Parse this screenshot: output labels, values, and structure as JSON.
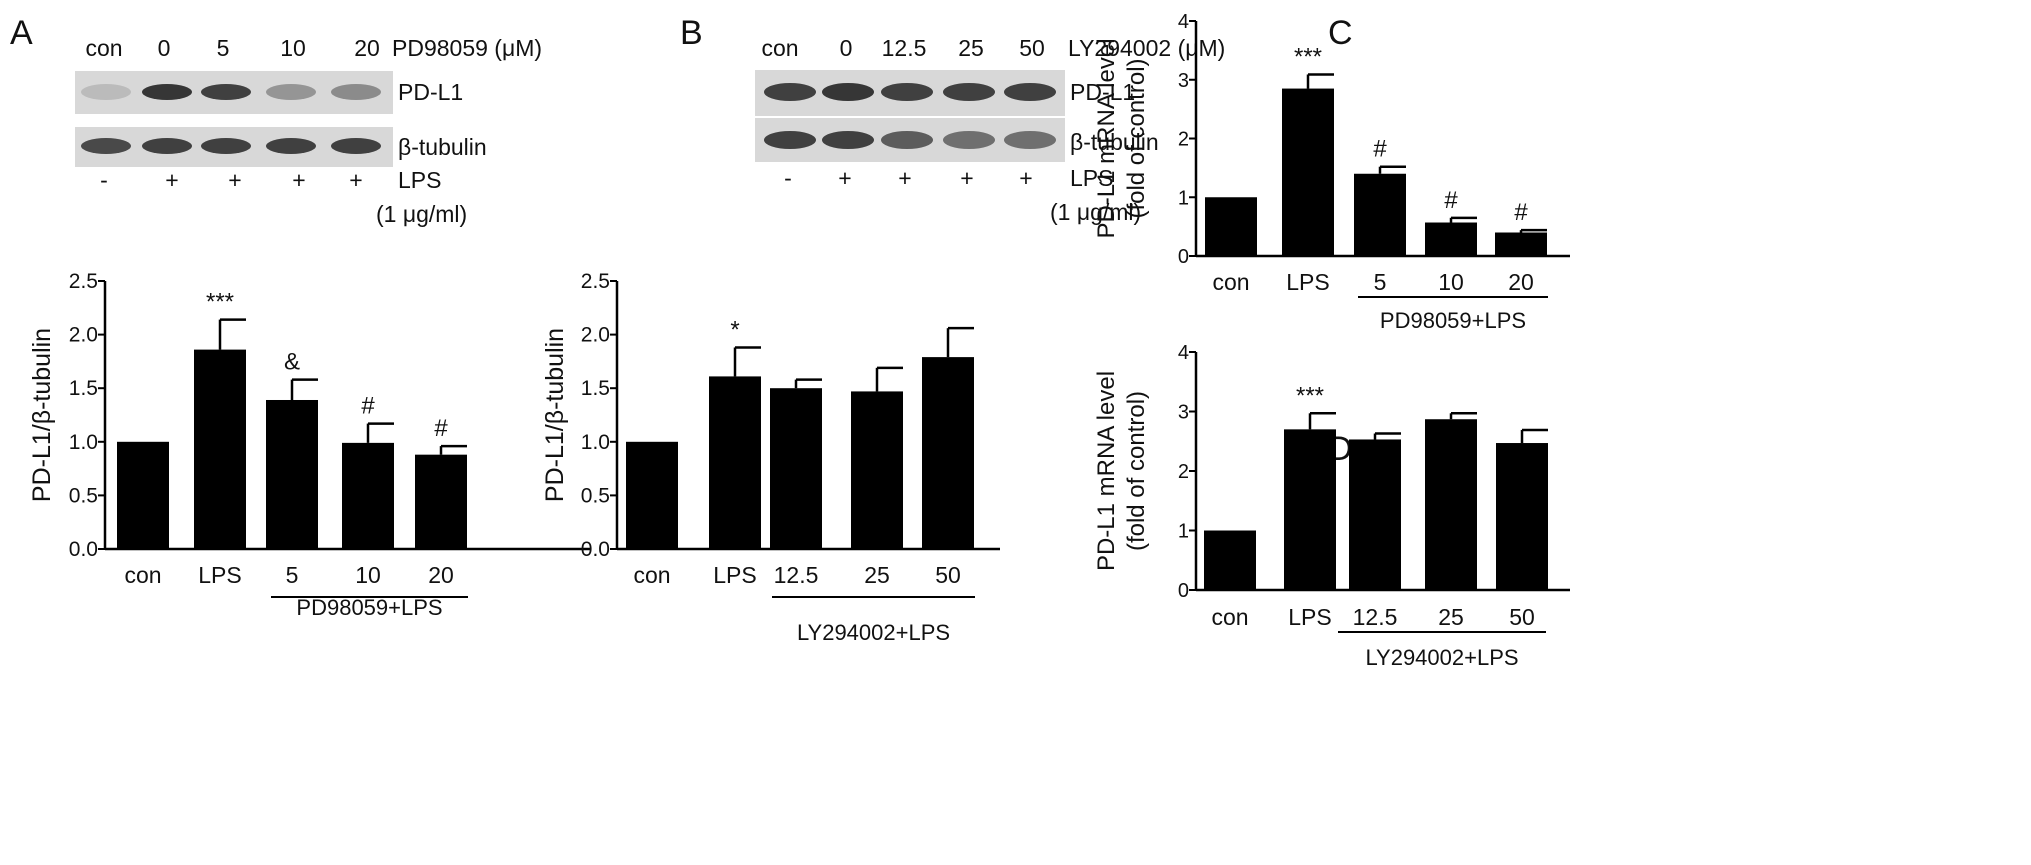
{
  "colors": {
    "bar": "#000000",
    "axis": "#000000",
    "blot_bg": "#d8d8d8",
    "band": "#1a1a1a"
  },
  "panels": {
    "A": {
      "letter": "A",
      "blot": {
        "lanes": [
          "con",
          "0",
          "5",
          "10",
          "20"
        ],
        "treatment_label": "PD98059 (μM)",
        "rows": [
          {
            "label": "PD-L1",
            "intensity": [
              0.15,
              0.85,
              0.8,
              0.35,
              0.4
            ]
          },
          {
            "label": "β-tubulin",
            "intensity": [
              0.75,
              0.8,
              0.8,
              0.8,
              0.8
            ]
          }
        ],
        "lps_signs": [
          "-",
          "+",
          "+",
          "+",
          "+"
        ],
        "lps_label": "LPS",
        "lps_dose": "(1 μg/ml)"
      }
    },
    "B": {
      "letter": "B",
      "blot": {
        "lanes": [
          "con",
          "0",
          "12.5",
          "25",
          "50"
        ],
        "treatment_label": "LY294002 (μM)",
        "rows": [
          {
            "label": "PD-L1",
            "intensity": [
              0.8,
              0.85,
              0.8,
              0.8,
              0.8
            ]
          },
          {
            "label": "β-tubulin",
            "intensity": [
              0.8,
              0.8,
              0.65,
              0.55,
              0.55
            ]
          }
        ],
        "lps_signs": [
          "-",
          "+",
          "+",
          "+",
          "+"
        ],
        "lps_label": "LPS",
        "lps_dose": "(1 μg/ml)"
      }
    },
    "C": {
      "letter": "C"
    },
    "D": {
      "letter": "D"
    }
  },
  "chart_data": [
    {
      "id": "A-bar",
      "type": "bar",
      "categories": [
        "con",
        "LPS",
        "5",
        "10",
        "20"
      ],
      "values": [
        1.0,
        1.86,
        1.39,
        0.99,
        0.88
      ],
      "errors": [
        0,
        0.28,
        0.19,
        0.18,
        0.08
      ],
      "annotations": [
        "",
        "***",
        "&",
        "#",
        "#"
      ],
      "ylabel": "PD-L1/β-tubulin",
      "ylim": [
        0,
        2.5
      ],
      "yticks": [
        "0.0",
        "0.5",
        "1.0",
        "1.5",
        "2.0",
        "2.5"
      ],
      "group_label": "PD98059+LPS"
    },
    {
      "id": "B-bar",
      "type": "bar",
      "categories": [
        "con",
        "LPS",
        "12.5",
        "25",
        "50"
      ],
      "values": [
        1.0,
        1.61,
        1.5,
        1.47,
        1.79
      ],
      "errors": [
        0,
        0.27,
        0.08,
        0.22,
        0.27
      ],
      "annotations": [
        "",
        "*",
        "",
        "",
        ""
      ],
      "ylabel": "PD-L1/β-tubulin",
      "ylim": [
        0,
        2.5
      ],
      "yticks": [
        "0.0",
        "0.5",
        "1.0",
        "1.5",
        "2.0",
        "2.5"
      ],
      "group_label": "LY294002+LPS"
    },
    {
      "id": "C-bar",
      "type": "bar",
      "categories": [
        "con",
        "LPS",
        "5",
        "10",
        "20"
      ],
      "values": [
        1.0,
        2.85,
        1.4,
        0.57,
        0.4
      ],
      "errors": [
        0,
        0.24,
        0.12,
        0.08,
        0.04
      ],
      "annotations": [
        "",
        "***",
        "#",
        "#",
        "#"
      ],
      "ylabel": "PD-L1 mRNA level (fold of control)",
      "ylabel_lines": [
        "PD-L1 mRNA level",
        "(fold of control)"
      ],
      "ylim": [
        0,
        4
      ],
      "yticks": [
        "0",
        "1",
        "2",
        "3",
        "4"
      ],
      "group_label": "PD98059+LPS"
    },
    {
      "id": "D-bar",
      "type": "bar",
      "categories": [
        "con",
        "LPS",
        "12.5",
        "25",
        "50"
      ],
      "values": [
        1.0,
        2.7,
        2.53,
        2.87,
        2.47
      ],
      "errors": [
        0,
        0.27,
        0.1,
        0.1,
        0.22
      ],
      "annotations": [
        "",
        "***",
        "",
        "",
        ""
      ],
      "ylabel": "PD-L1 mRNA level (fold of control)",
      "ylabel_lines": [
        "PD-L1 mRNA level",
        "(fold of control)"
      ],
      "ylim": [
        0,
        4
      ],
      "yticks": [
        "0",
        "1",
        "2",
        "3",
        "4"
      ],
      "group_label": "LY294002+LPS"
    }
  ]
}
